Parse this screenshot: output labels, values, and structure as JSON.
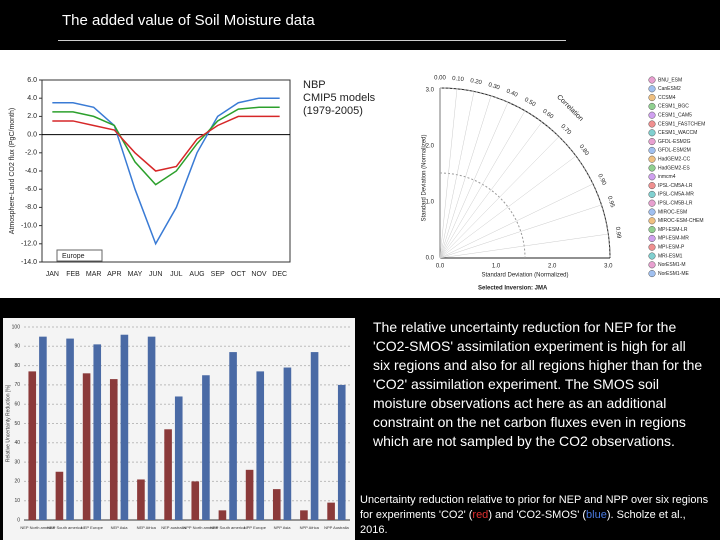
{
  "title": "The added value of Soil Moisture data",
  "chart_note": [
    "NBP",
    "CMIP5 models",
    "(1979-2005)"
  ],
  "paragraph": "The relative uncertainty reduction for NEP for the 'CO2-SMOS' assimilation experiment is high for all six regions and also for all regions higher than for the 'CO2' assimilation experiment. The SMOS soil moisture observations act here as an additional constraint on the net carbon fluxes even in regions which are not sampled by the CO2 observations.",
  "caption": {
    "before": "Uncertainty reduction relative to prior for NEP and NPP over six regions for experiments 'CO2' (",
    "red": "red",
    "middle": ") and 'CO2-SMOS' (",
    "blue": "blue",
    "after": "). Scholze et al., 2016."
  },
  "taylor": {
    "y_label": "Standard Deviation (Normalized)",
    "x_label": "Standard Deviation (Normalized)",
    "arc_label": "Correlation",
    "footer": "Selected Inversion: JMA",
    "std_labels": [
      "0.0",
      "1.0",
      "2.0",
      "3.0"
    ],
    "correlation_labels": [
      "0.00",
      "0.10",
      "0.20",
      "0.30",
      "0.40",
      "0.50",
      "0.60",
      "0.70",
      "0.80",
      "0.90",
      "0.95",
      "0.99"
    ],
    "models": [
      "BNU_ESM",
      "CanESM2",
      "CCSM4",
      "CESM1_BGC",
      "CESM1_CAM5",
      "CESM1_FASTCHEM",
      "CESM1_WACCM",
      "GFDL-ESM2G",
      "GFDL-ESM2M",
      "HadGEM2-CC",
      "HadGEM2-ES",
      "inmcm4",
      "IPSL-CM5A-LR",
      "IPSL-CM5A-MR",
      "IPSL-CM5B-LR",
      "MIROC-ESM",
      "MIROC-ESM-CHEM",
      "MPI-ESM-LR",
      "MPI-ESM-MR",
      "MPI-ESM-P",
      "MRI-ESM1",
      "NorESM1-M",
      "NorESM1-ME"
    ]
  },
  "chart_data": [
    {
      "type": "line",
      "y_label": "Atmosphere-Land CO2 flux (PgC/month)",
      "legend": "Europe",
      "categories": [
        "JAN",
        "FEB",
        "MAR",
        "APR",
        "MAY",
        "JUN",
        "JUL",
        "AUG",
        "SEP",
        "OCT",
        "NOV",
        "DEC"
      ],
      "series": [
        {
          "color": "#3a7bd5",
          "values": [
            3.5,
            3.5,
            3.0,
            1.0,
            -6.0,
            -12.0,
            -8.0,
            -2.0,
            2.0,
            3.5,
            4.0,
            4.0
          ]
        },
        {
          "color": "#2ca02c",
          "values": [
            2.5,
            2.5,
            2.0,
            1.0,
            -3.0,
            -5.5,
            -4.0,
            -1.0,
            1.5,
            2.8,
            3.0,
            3.0
          ]
        },
        {
          "color": "#d62728",
          "values": [
            1.5,
            1.5,
            1.0,
            0.5,
            -2.0,
            -4.0,
            -3.5,
            -0.5,
            1.0,
            2.0,
            2.0,
            2.0
          ]
        }
      ],
      "ylim": [
        -14,
        6
      ],
      "yticks": [
        {
          "value": -14,
          "label": "-14.0"
        },
        {
          "value": -12,
          "label": "-12.0"
        },
        {
          "value": -10,
          "label": "-10.0"
        },
        {
          "value": -8,
          "label": "-8.0"
        },
        {
          "value": -6,
          "label": "-6.0"
        },
        {
          "value": -4,
          "label": "-4.0"
        },
        {
          "value": -2,
          "label": "-2.0"
        },
        {
          "value": 0,
          "label": "0.0"
        },
        {
          "value": 2,
          "label": "2.0"
        },
        {
          "value": 4,
          "label": "4.0"
        },
        {
          "value": 6,
          "label": "6.0"
        }
      ]
    },
    {
      "type": "bar",
      "y_label": "Relative Uncertainty Reduction [%]",
      "categories": [
        "NEP North america",
        "NEP South america",
        "NEP Europe",
        "NEP Asia",
        "NEP Africa",
        "NEP australia",
        "NPP North america",
        "NPP South america",
        "NPP Europe",
        "NPP Asia",
        "NPP Africa",
        "NPP Australia"
      ],
      "series": [
        {
          "color": "#8b3a3a",
          "values": [
            77,
            25,
            76,
            73,
            21,
            47,
            20,
            5,
            26,
            16,
            5,
            9
          ]
        },
        {
          "color": "#4a6aa5",
          "values": [
            95,
            94,
            91,
            96,
            95,
            64,
            75,
            87,
            77,
            79,
            87,
            70
          ]
        }
      ],
      "ylim": [
        0,
        100
      ],
      "yticks": [
        0,
        10,
        20,
        30,
        40,
        50,
        60,
        70,
        80,
        90,
        100
      ]
    }
  ]
}
